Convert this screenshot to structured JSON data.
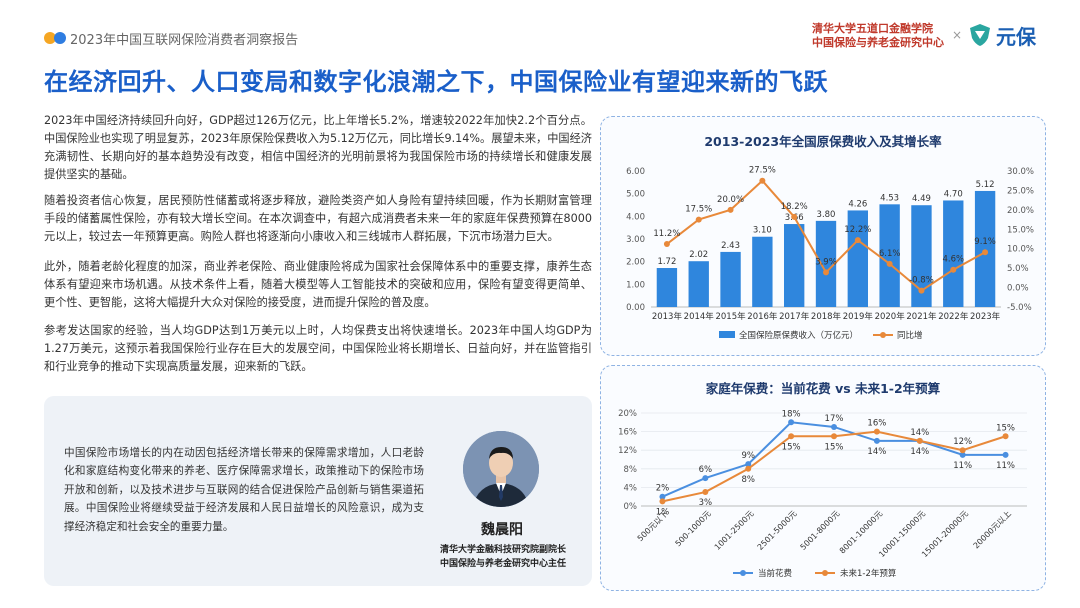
{
  "header": {
    "report_title": "2023年中国互联网保险消费者洞察报告",
    "org_line1": "清华大学五道口金融学院",
    "org_line2": "中国保险与养老金研究中心",
    "cross": "×",
    "logo_text": "元保"
  },
  "main": {
    "title": "在经济回升、人口变局和数字化浪潮之下，中国保险业有望迎来新的飞跃",
    "paragraphs": [
      "2023年中国经济持续回升向好，GDP超过126万亿元，比上年增长5.2%，增速较2022年加快2.2个百分点。中国保险业也实现了明显复苏，2023年原保险保费收入为5.12万亿元，同比增长9.14%。展望未来，中国经济充满韧性、长期向好的基本趋势没有改变，相信中国经济的光明前景将为我国保险市场的持续增长和健康发展提供坚实的基础。",
      "随着投资者信心恢复，居民预防性储蓄或将逐步释放，避险类资产如人身险有望持续回暖，作为长期财富管理手段的储蓄属性保险，亦有较大增长空间。在本次调查中，有超六成消费者未来一年的家庭年保费预算在8000元以上，较过去一年预算更高。购险人群也将逐渐向小康收入和三线城市人群拓展，下沉市场潜力巨大。",
      "此外，随着老龄化程度的加深，商业养老保险、商业健康险将成为国家社会保障体系中的重要支撑，康养生态体系有望迎来市场机遇。从技术条件上看，随着大模型等人工智能技术的突破和应用，保险有望变得更简单、更个性、更智能，这将大幅提升大众对保险的接受度，进而提升保险的普及度。",
      "参考发达国家的经验，当人均GDP达到1万美元以上时，人均保费支出将快速增长。2023年中国人均GDP为1.27万美元，这预示着我国保险行业存在巨大的发展空间，中国保险业将长期增长、日益向好，并在监管指引和行业竞争的推动下实现高质量发展，迎来新的飞跃。"
    ]
  },
  "quote": {
    "text": "中国保险市场增长的内在动因包括经济增长带来的保障需求增加，人口老龄化和家庭结构变化带来的养老、医疗保障需求增长，政策推动下的保险市场开放和创新，以及技术进步与互联网的结合促进保险产品创新与销售渠道拓展。中国保险业将继续受益于经济发展和人民日益增长的风险意识，成为支撑经济稳定和社会安全的重要力量。",
    "name": "魏晨阳",
    "title1": "清华大学金融科技研究院副院长",
    "title2": "中国保险与养老金研究中心主任"
  },
  "chart_data": [
    {
      "type": "bar",
      "title": "2013-2023年全国原保费收入及其增长率",
      "categories": [
        "2013年",
        "2014年",
        "2015年",
        "2016年",
        "2017年",
        "2018年",
        "2019年",
        "2020年",
        "2021年",
        "2022年",
        "2023年"
      ],
      "series": [
        {
          "name": "全国保险原保费收入（万亿元）",
          "type": "bar",
          "axis": "left",
          "values": [
            1.72,
            2.02,
            2.43,
            3.1,
            3.66,
            3.8,
            4.26,
            4.53,
            4.49,
            4.7,
            5.12
          ],
          "labels": [
            "1.72",
            "2.02",
            "2.43",
            "3.10",
            "3.66",
            "3.80",
            "4.26",
            "4.53",
            "4.49",
            "4.70",
            "5.12"
          ]
        },
        {
          "name": "同比增",
          "type": "line",
          "axis": "right",
          "values": [
            11.2,
            17.5,
            20.0,
            27.5,
            18.2,
            3.9,
            12.2,
            6.1,
            -0.8,
            4.6,
            9.1
          ],
          "labels": [
            "11.2%",
            "17.5%",
            "20.0%",
            "27.5%",
            "18.2%",
            "3.9%",
            "12.2%",
            "6.1%",
            "-0.8%",
            "4.6%",
            "9.1%"
          ]
        }
      ],
      "ylim_left": [
        0,
        6
      ],
      "ylim_right": [
        -5,
        30
      ],
      "yticks_left": [
        "0.00",
        "1.00",
        "2.00",
        "3.00",
        "4.00",
        "5.00",
        "6.00"
      ],
      "yticks_right": [
        "-5.0%",
        "0.0%",
        "5.0%",
        "10.0%",
        "15.0%",
        "20.0%",
        "25.0%",
        "30.0%"
      ],
      "legend": "bottom",
      "colors": {
        "bar": "#2f86dd",
        "line": "#e8893a"
      }
    },
    {
      "type": "line",
      "title": "家庭年保费：当前花费 vs 未来1-2年预算",
      "categories": [
        "500元以下",
        "500-1000元",
        "1001-2500元",
        "2501-5000元",
        "5001-8000元",
        "8001-10000元",
        "10001-15000元",
        "15001-20000元",
        "20000元以上"
      ],
      "series": [
        {
          "name": "当前花费",
          "values": [
            2,
            6,
            9,
            18,
            17,
            14,
            14,
            11,
            11
          ],
          "labels": [
            "2%",
            "6%",
            "9%",
            "18%",
            "17%",
            "14%",
            "14%",
            "11%",
            "11%"
          ]
        },
        {
          "name": "未来1-2年预算",
          "values": [
            1,
            3,
            8,
            15,
            15,
            16,
            14,
            12,
            15
          ],
          "labels": [
            "1%",
            "3%",
            "8%",
            "15%",
            "15%",
            "16%",
            "14%",
            "12%",
            "15%"
          ]
        }
      ],
      "ylim": [
        0,
        20
      ],
      "yticks": [
        "0%",
        "4%",
        "8%",
        "12%",
        "16%",
        "20%"
      ],
      "legend": "bottom",
      "colors": {
        "current": "#4a8fe0",
        "future": "#e8893a"
      }
    }
  ]
}
